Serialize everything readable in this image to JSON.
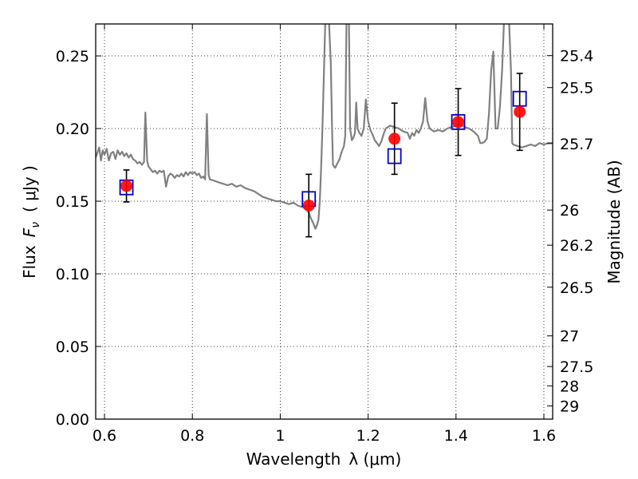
{
  "chart_data": {
    "type": "scatter",
    "xlabel": "Wavelength",
    "xlabel_math": "λ (μm)",
    "ylabel": "Flux",
    "ylabel_math_symbol": "F",
    "ylabel_math_sub": "ν",
    "ylabel_unit": "( μJy )",
    "y2label": "Magnitude (AB)",
    "xlim": [
      0.58,
      1.62
    ],
    "ylim": [
      0.0,
      0.272
    ],
    "grid": true,
    "x_ticks": [
      {
        "value": 0.6,
        "label": "0.6"
      },
      {
        "value": 0.8,
        "label": "0.8"
      },
      {
        "value": 1.0,
        "label": "1"
      },
      {
        "value": 1.2,
        "label": "1.2"
      },
      {
        "value": 1.4,
        "label": "1.4"
      },
      {
        "value": 1.6,
        "label": "1.6"
      }
    ],
    "y_ticks": [
      {
        "value": 0.0,
        "label": "0.00"
      },
      {
        "value": 0.05,
        "label": "0.05"
      },
      {
        "value": 0.1,
        "label": "0.10"
      },
      {
        "value": 0.15,
        "label": "0.15"
      },
      {
        "value": 0.2,
        "label": "0.20"
      },
      {
        "value": 0.25,
        "label": "0.25"
      }
    ],
    "y2_ticks": [
      {
        "label": "25.4",
        "flux": 0.2502
      },
      {
        "label": "25.5",
        "flux": 0.2282
      },
      {
        "label": "25.7",
        "flux": 0.1897
      },
      {
        "label": "26",
        "flux": 0.1439
      },
      {
        "label": "26.2",
        "flux": 0.1197
      },
      {
        "label": "26.5",
        "flux": 0.0908
      },
      {
        "label": "27",
        "flux": 0.0573
      },
      {
        "label": "27.5",
        "flux": 0.0362
      },
      {
        "label": "28",
        "flux": 0.0229
      },
      {
        "label": "29",
        "flux": 0.0091
      }
    ],
    "observed": [
      {
        "x": 0.65,
        "y": 0.1605,
        "err": 0.011
      },
      {
        "x": 1.065,
        "y": 0.147,
        "err": 0.0215
      },
      {
        "x": 1.26,
        "y": 0.193,
        "err": 0.0245
      },
      {
        "x": 1.405,
        "y": 0.2045,
        "err": 0.023
      },
      {
        "x": 1.545,
        "y": 0.2115,
        "err": 0.0265
      }
    ],
    "model": [
      {
        "x": 0.65,
        "y": 0.1595
      },
      {
        "x": 1.065,
        "y": 0.1515
      },
      {
        "x": 1.26,
        "y": 0.181
      },
      {
        "x": 1.405,
        "y": 0.2045
      },
      {
        "x": 1.545,
        "y": 0.2205
      }
    ],
    "spectrum": [
      [
        0.58,
        0.18
      ],
      [
        0.588,
        0.187
      ],
      [
        0.592,
        0.178
      ],
      [
        0.596,
        0.185
      ],
      [
        0.6,
        0.182
      ],
      [
        0.605,
        0.186
      ],
      [
        0.61,
        0.178
      ],
      [
        0.615,
        0.183
      ],
      [
        0.62,
        0.184
      ],
      [
        0.625,
        0.179
      ],
      [
        0.63,
        0.185
      ],
      [
        0.635,
        0.182
      ],
      [
        0.64,
        0.184
      ],
      [
        0.645,
        0.181
      ],
      [
        0.65,
        0.183
      ],
      [
        0.655,
        0.18
      ],
      [
        0.66,
        0.182
      ],
      [
        0.665,
        0.179
      ],
      [
        0.67,
        0.178
      ],
      [
        0.675,
        0.176
      ],
      [
        0.68,
        0.177
      ],
      [
        0.685,
        0.175
      ],
      [
        0.69,
        0.177
      ],
      [
        0.693,
        0.211
      ],
      [
        0.697,
        0.178
      ],
      [
        0.7,
        0.174
      ],
      [
        0.705,
        0.172
      ],
      [
        0.71,
        0.17
      ],
      [
        0.715,
        0.171
      ],
      [
        0.72,
        0.169
      ],
      [
        0.725,
        0.171
      ],
      [
        0.73,
        0.17
      ],
      [
        0.735,
        0.171
      ],
      [
        0.74,
        0.16
      ],
      [
        0.745,
        0.167
      ],
      [
        0.75,
        0.169
      ],
      [
        0.755,
        0.168
      ],
      [
        0.76,
        0.166
      ],
      [
        0.765,
        0.168
      ],
      [
        0.77,
        0.167
      ],
      [
        0.775,
        0.169
      ],
      [
        0.78,
        0.167
      ],
      [
        0.785,
        0.17
      ],
      [
        0.79,
        0.168
      ],
      [
        0.795,
        0.17
      ],
      [
        0.8,
        0.169
      ],
      [
        0.805,
        0.17
      ],
      [
        0.81,
        0.168
      ],
      [
        0.815,
        0.169
      ],
      [
        0.82,
        0.166
      ],
      [
        0.825,
        0.167
      ],
      [
        0.829,
        0.165
      ],
      [
        0.833,
        0.21
      ],
      [
        0.837,
        0.168
      ],
      [
        0.84,
        0.165
      ],
      [
        0.85,
        0.164
      ],
      [
        0.86,
        0.163
      ],
      [
        0.87,
        0.162
      ],
      [
        0.88,
        0.161
      ],
      [
        0.89,
        0.162
      ],
      [
        0.9,
        0.16
      ],
      [
        0.91,
        0.161
      ],
      [
        0.92,
        0.159
      ],
      [
        0.93,
        0.158
      ],
      [
        0.94,
        0.157
      ],
      [
        0.95,
        0.155
      ],
      [
        0.96,
        0.153
      ],
      [
        0.97,
        0.152
      ],
      [
        0.98,
        0.151
      ],
      [
        0.99,
        0.15
      ],
      [
        1.0,
        0.15
      ],
      [
        1.01,
        0.149
      ],
      [
        1.02,
        0.148
      ],
      [
        1.03,
        0.149
      ],
      [
        1.04,
        0.147
      ],
      [
        1.05,
        0.146
      ],
      [
        1.06,
        0.145
      ],
      [
        1.065,
        0.142
      ],
      [
        1.07,
        0.138
      ],
      [
        1.075,
        0.135
      ],
      [
        1.08,
        0.131
      ],
      [
        1.083,
        0.133
      ],
      [
        1.087,
        0.137
      ],
      [
        1.09,
        0.15
      ],
      [
        1.093,
        0.172
      ],
      [
        1.096,
        0.2
      ],
      [
        1.1,
        0.245
      ],
      [
        1.103,
        0.28
      ],
      [
        1.11,
        0.28
      ],
      [
        1.115,
        0.245
      ],
      [
        1.118,
        0.2
      ],
      [
        1.12,
        0.175
      ],
      [
        1.125,
        0.173
      ],
      [
        1.13,
        0.176
      ],
      [
        1.135,
        0.179
      ],
      [
        1.14,
        0.184
      ],
      [
        1.145,
        0.188
      ],
      [
        1.148,
        0.195
      ],
      [
        1.151,
        0.28
      ],
      [
        1.156,
        0.28
      ],
      [
        1.159,
        0.2
      ],
      [
        1.163,
        0.192
      ],
      [
        1.167,
        0.194
      ],
      [
        1.17,
        0.197
      ],
      [
        1.173,
        0.218
      ],
      [
        1.176,
        0.2
      ],
      [
        1.18,
        0.197
      ],
      [
        1.185,
        0.195
      ],
      [
        1.19,
        0.2
      ],
      [
        1.195,
        0.22
      ],
      [
        1.2,
        0.205
      ],
      [
        1.205,
        0.199
      ],
      [
        1.21,
        0.196
      ],
      [
        1.215,
        0.192
      ],
      [
        1.22,
        0.19
      ],
      [
        1.225,
        0.188
      ],
      [
        1.23,
        0.191
      ],
      [
        1.235,
        0.196
      ],
      [
        1.24,
        0.2
      ],
      [
        1.25,
        0.202
      ],
      [
        1.26,
        0.201
      ],
      [
        1.27,
        0.2
      ],
      [
        1.28,
        0.198
      ],
      [
        1.29,
        0.197
      ],
      [
        1.295,
        0.193
      ],
      [
        1.3,
        0.197
      ],
      [
        1.305,
        0.195
      ],
      [
        1.31,
        0.199
      ],
      [
        1.315,
        0.197
      ],
      [
        1.32,
        0.2
      ],
      [
        1.325,
        0.205
      ],
      [
        1.33,
        0.221
      ],
      [
        1.335,
        0.205
      ],
      [
        1.34,
        0.2
      ],
      [
        1.35,
        0.198
      ],
      [
        1.36,
        0.199
      ],
      [
        1.37,
        0.198
      ],
      [
        1.38,
        0.2
      ],
      [
        1.39,
        0.201
      ],
      [
        1.4,
        0.202
      ],
      [
        1.41,
        0.203
      ],
      [
        1.42,
        0.201
      ],
      [
        1.43,
        0.2
      ],
      [
        1.44,
        0.198
      ],
      [
        1.45,
        0.195
      ],
      [
        1.455,
        0.19
      ],
      [
        1.46,
        0.19
      ],
      [
        1.465,
        0.191
      ],
      [
        1.47,
        0.193
      ],
      [
        1.475,
        0.21
      ],
      [
        1.48,
        0.24
      ],
      [
        1.485,
        0.253
      ],
      [
        1.49,
        0.2
      ],
      [
        1.495,
        0.2
      ],
      [
        1.5,
        0.215
      ],
      [
        1.505,
        0.24
      ],
      [
        1.51,
        0.28
      ],
      [
        1.52,
        0.28
      ],
      [
        1.525,
        0.24
      ],
      [
        1.528,
        0.19
      ],
      [
        1.53,
        0.189
      ],
      [
        1.54,
        0.188
      ],
      [
        1.55,
        0.187
      ],
      [
        1.56,
        0.188
      ],
      [
        1.57,
        0.189
      ],
      [
        1.58,
        0.188
      ],
      [
        1.59,
        0.19
      ],
      [
        1.6,
        0.189
      ],
      [
        1.61,
        0.19
      ],
      [
        1.62,
        0.19
      ]
    ],
    "colors": {
      "spectrum": "#808080",
      "observed": "#ff0000",
      "model_box": "#0000cc",
      "error_bars": "#000000",
      "grid": "#000000"
    }
  }
}
